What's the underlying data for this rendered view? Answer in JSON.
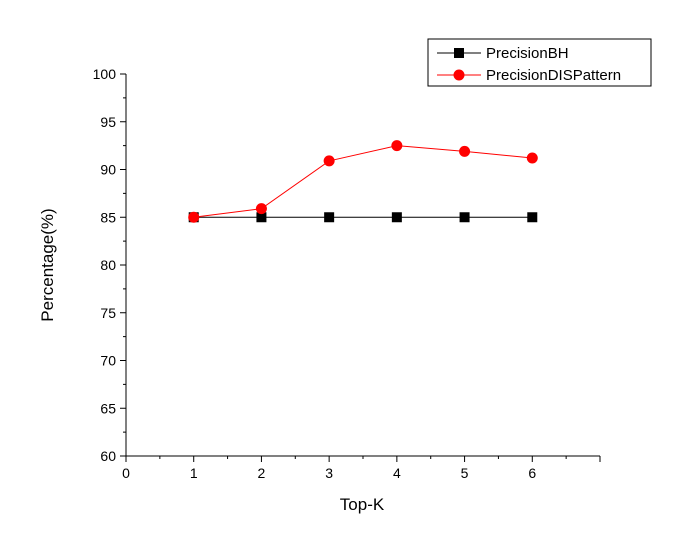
{
  "chart_data": {
    "type": "line",
    "title": "",
    "xlabel": "Top-K",
    "ylabel": "Percentage(%)",
    "xlim": [
      0,
      7
    ],
    "ylim": [
      60,
      100
    ],
    "x_ticks": [
      "0",
      "1",
      "2",
      "3",
      "4",
      "5",
      "6"
    ],
    "y_ticks": [
      "60",
      "65",
      "70",
      "75",
      "80",
      "85",
      "90",
      "95",
      "100"
    ],
    "x": [
      1,
      2,
      3,
      4,
      5,
      6
    ],
    "series": [
      {
        "name": "PrecisionBH",
        "values": [
          85,
          85,
          85,
          85,
          85,
          85
        ],
        "color": "#000000",
        "marker": "square"
      },
      {
        "name": "PrecisionDISPattern",
        "values": [
          85,
          85.9,
          90.9,
          92.5,
          91.9,
          91.2
        ],
        "color": "#ff0000",
        "marker": "circle"
      }
    ],
    "legend_position": "top-right",
    "grid": false
  }
}
